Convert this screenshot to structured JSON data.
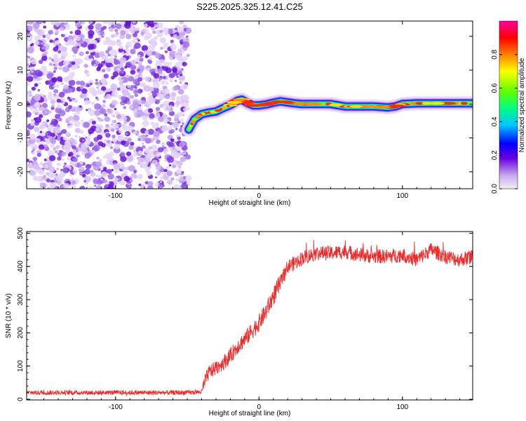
{
  "title": "S225.2025.325.12.41.C25",
  "chart_data": [
    {
      "type": "heatmap",
      "name": "spectrogram",
      "xlabel": "Height of straight line (km)",
      "ylabel": "Frequency (Hz)",
      "xlim": [
        -162,
        149
      ],
      "ylim": [
        -25,
        24.5
      ],
      "xticks": [
        -100,
        0,
        100
      ],
      "yticks": [
        -20,
        -10,
        0,
        10,
        20
      ],
      "noise_region_x": [
        -162,
        -49
      ],
      "ridge": {
        "x": [
          -49,
          -45,
          -40,
          -35,
          -30,
          -25,
          -20,
          -15,
          -12,
          -8,
          -4,
          0,
          5,
          10,
          15,
          20,
          25,
          30,
          40,
          50,
          60,
          70,
          80,
          90,
          95,
          100,
          110,
          120,
          130,
          140,
          148
        ],
        "y": [
          -7.5,
          -4.5,
          -3,
          -2.5,
          -2.2,
          -1.2,
          -0.3,
          1,
          1.3,
          0.3,
          -0.4,
          -0.4,
          -0.1,
          0.4,
          0.8,
          0.5,
          0.2,
          0,
          0,
          0,
          -0.7,
          -0.7,
          -0.7,
          -1,
          -0.7,
          0,
          0.2,
          0.2,
          0.2,
          0.2,
          0.2
        ]
      },
      "colorbar": {
        "label": "Normalized spectral amplitude",
        "range": [
          0,
          1
        ],
        "ticks": [
          "0.0",
          "0.2",
          "0.4",
          "0.6",
          "0.8"
        ]
      }
    },
    {
      "type": "line",
      "name": "snr",
      "xlabel": "Height of straight line (km)",
      "ylabel": "SNR (10 * v/v)",
      "xlim": [
        -162,
        149
      ],
      "ylim": [
        -2,
        505
      ],
      "xticks": [
        -100,
        0,
        100
      ],
      "yticks": [
        0,
        100,
        200,
        300,
        400,
        500
      ],
      "series": [
        {
          "name": "SNR",
          "color": "#ee2a2a",
          "x": [
            -162,
            -120,
            -80,
            -50,
            -40,
            -38,
            -35,
            -30,
            -25,
            -20,
            -15,
            -10,
            -5,
            0,
            5,
            10,
            15,
            20,
            25,
            30,
            40,
            50,
            60,
            70,
            80,
            90,
            100,
            110,
            120,
            130,
            140,
            149
          ],
          "y": [
            20,
            20,
            20,
            20,
            22,
            50,
            80,
            95,
            110,
            130,
            160,
            180,
            205,
            230,
            265,
            310,
            350,
            400,
            410,
            425,
            440,
            440,
            445,
            435,
            430,
            430,
            435,
            420,
            450,
            430,
            420,
            430
          ]
        }
      ]
    }
  ]
}
